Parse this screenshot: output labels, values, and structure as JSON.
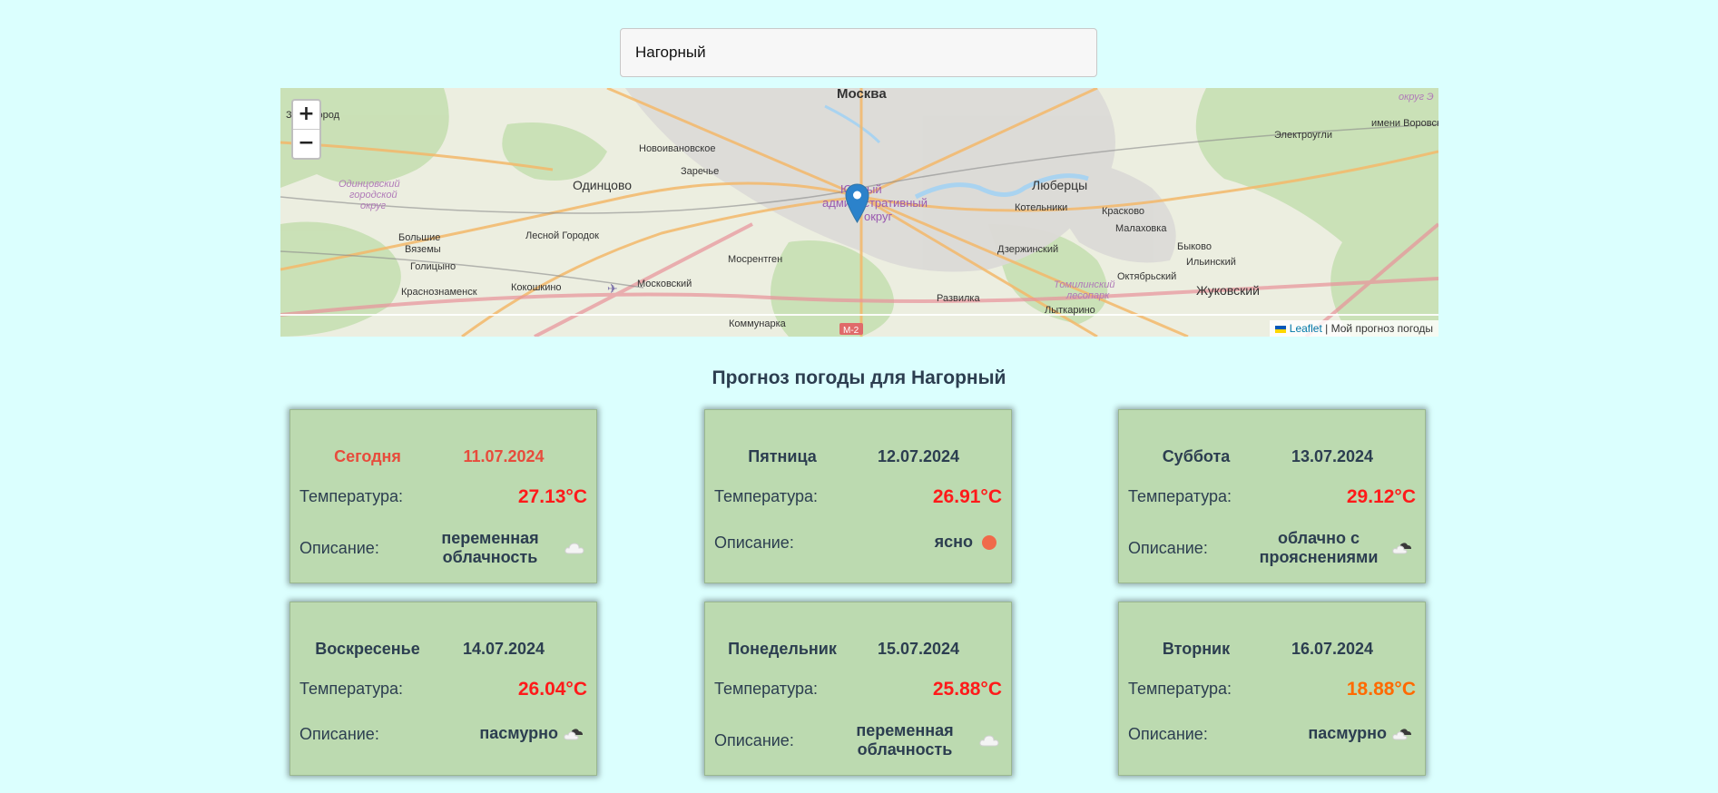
{
  "search": {
    "value": "Нагорный"
  },
  "map": {
    "zoom_in": "+",
    "zoom_out": "−",
    "attribution_link": "Leaflet",
    "attribution_text": "| Мой прогноз погоды",
    "labels": [
      "Москва",
      "Одинцово",
      "Люберцы",
      "Новоивановское",
      "Заречье",
      "Электроугли",
      "имени Воровского",
      "Одинцовский городской округ",
      "Большие Вяземы",
      "Лесной Городок",
      "Голицыно",
      "Краснознаменск",
      "Кокошкино",
      "Московский",
      "Мосрентген",
      "Южный административный округ",
      "Котельники",
      "Красково",
      "Малаховка",
      "Быково",
      "Ильинский",
      "Дзержинский",
      "Октябрьский",
      "Томилинский лесопарк",
      "Развилка",
      "Жуковский",
      "Лыткарино",
      "Коммунарка",
      "М-2",
      "Звенигород",
      "округ Э"
    ]
  },
  "forecast_title": "Прогноз погоды для Нагорный",
  "labels": {
    "temperature": "Температура:",
    "description": "Описание:"
  },
  "colors": {
    "background": "#dbfffe",
    "card": "#bcdab0",
    "hot": "#ff1a1a",
    "warm": "#ff6a00",
    "today": "#e74c3c"
  },
  "cards": [
    {
      "day": "Сегодня",
      "date": "11.07.2024",
      "temp": "27.13°C",
      "desc": "переменная облачность",
      "icon": "cloud-icon"
    },
    {
      "day": "Пятница",
      "date": "12.07.2024",
      "temp": "26.91°C",
      "desc": "ясно",
      "icon": "sun-icon"
    },
    {
      "day": "Суббота",
      "date": "13.07.2024",
      "temp": "29.12°C",
      "desc": "облачно с прояснениями",
      "icon": "broken-clouds-icon"
    },
    {
      "day": "Воскресенье",
      "date": "14.07.2024",
      "temp": "26.04°C",
      "desc": "пасмурно",
      "icon": "overcast-icon"
    },
    {
      "day": "Понедельник",
      "date": "15.07.2024",
      "temp": "25.88°C",
      "desc": "переменная облачность",
      "icon": "cloud-icon"
    },
    {
      "day": "Вторник",
      "date": "16.07.2024",
      "temp": "18.88°C",
      "desc": "пасмурно",
      "icon": "overcast-icon"
    }
  ]
}
